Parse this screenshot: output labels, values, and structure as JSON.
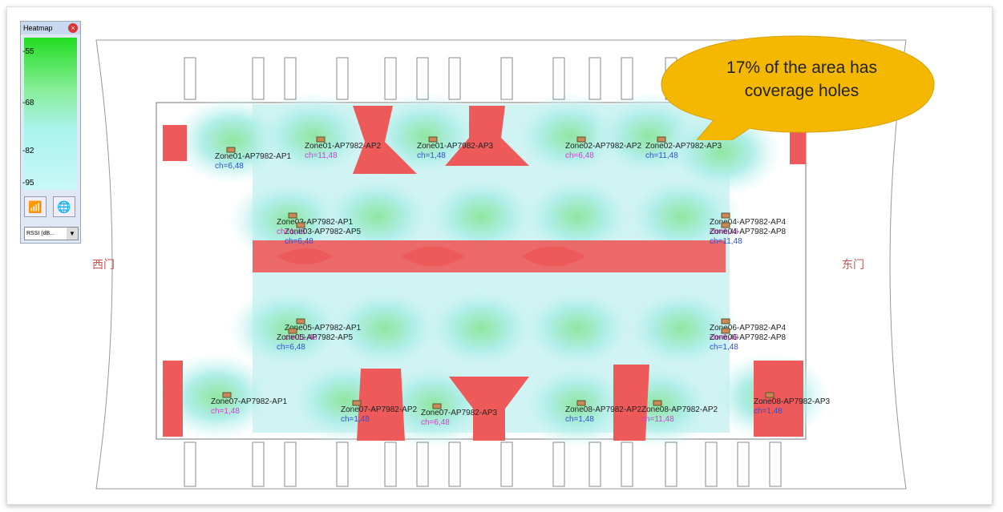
{
  "legend": {
    "title": "Heatmap",
    "scale": [
      "-55",
      "-68",
      "-82",
      "-95"
    ],
    "metric": "RSSI (dB..."
  },
  "callout": "17% of the area has coverage holes",
  "doors": {
    "west": "西门",
    "east": "东门"
  },
  "access_points": [
    {
      "name": "Zone01-AP7982-AP1",
      "channel": "ch=6,48"
    },
    {
      "name": "Zone01-AP7982-AP2",
      "channel": "ch=11,48"
    },
    {
      "name": "Zone01-AP7982-AP3",
      "channel": "ch=1,48"
    },
    {
      "name": "Zone02-AP7982-AP2",
      "channel": "ch=6,48"
    },
    {
      "name": "Zone02-AP7982-AP3",
      "channel": "ch=11,48"
    },
    {
      "name": "Zone03-AP7982-AP1",
      "channel": "ch=1,48"
    },
    {
      "name": "Zone03-AP7982-AP5",
      "channel": "ch=6,48"
    },
    {
      "name": "Zone04-AP7982-AP4",
      "channel": "ch=6,48"
    },
    {
      "name": "Zone04-AP7982-AP8",
      "channel": "ch=11,48"
    },
    {
      "name": "Zone05-AP7982-AP1",
      "channel": "ch=11,48"
    },
    {
      "name": "Zone05-AP7982-AP5",
      "channel": "ch=6,48"
    },
    {
      "name": "Zone06-AP7982-AP4",
      "channel": "ch=6,48"
    },
    {
      "name": "Zone06-AP7982-AP8",
      "channel": "ch=1,48"
    },
    {
      "name": "Zone07-AP7982-AP1",
      "channel": "ch=1,48"
    },
    {
      "name": "Zone07-AP7982-AP2",
      "channel": "ch=1,48"
    },
    {
      "name": "Zone07-AP7982-AP3",
      "channel": "ch=6,48"
    },
    {
      "name": "Zone08-AP7982-AP2",
      "channel": "ch=1,48"
    },
    {
      "name": "Zone08-AP7982-AP2",
      "channel": "ch=11,48"
    },
    {
      "name": "Zone08-AP7982-AP3",
      "channel": "ch=1,48"
    }
  ]
}
